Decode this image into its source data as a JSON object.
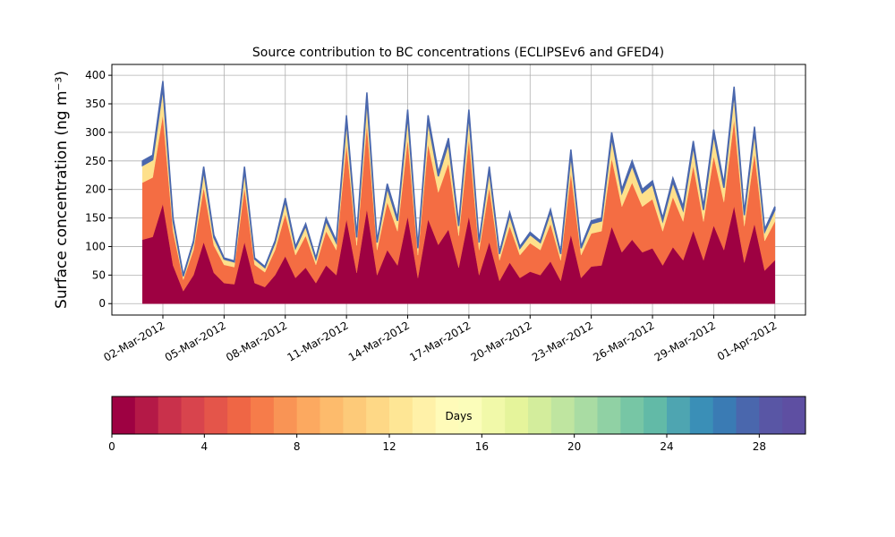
{
  "chart_data": {
    "type": "stacked_area",
    "title": "Source contribution to BC concentrations (ECLIPSEv6 and GFED4)",
    "y_label": "Surface concentration (ng m⁻³)",
    "x": [
      "2012-03-01T00:00",
      "2012-03-01T12:00",
      "2012-03-02T00:00",
      "2012-03-02T12:00",
      "2012-03-03T00:00",
      "2012-03-03T12:00",
      "2012-03-04T00:00",
      "2012-03-04T12:00",
      "2012-03-05T00:00",
      "2012-03-05T12:00",
      "2012-03-06T00:00",
      "2012-03-06T12:00",
      "2012-03-07T00:00",
      "2012-03-07T12:00",
      "2012-03-08T00:00",
      "2012-03-08T12:00",
      "2012-03-09T00:00",
      "2012-03-09T12:00",
      "2012-03-10T00:00",
      "2012-03-10T12:00",
      "2012-03-11T00:00",
      "2012-03-11T12:00",
      "2012-03-12T00:00",
      "2012-03-12T12:00",
      "2012-03-13T00:00",
      "2012-03-13T12:00",
      "2012-03-14T00:00",
      "2012-03-14T12:00",
      "2012-03-15T00:00",
      "2012-03-15T12:00",
      "2012-03-16T00:00",
      "2012-03-16T12:00",
      "2012-03-17T00:00",
      "2012-03-17T12:00",
      "2012-03-18T00:00",
      "2012-03-18T12:00",
      "2012-03-19T00:00",
      "2012-03-19T12:00",
      "2012-03-20T00:00",
      "2012-03-20T12:00",
      "2012-03-21T00:00",
      "2012-03-21T12:00",
      "2012-03-22T00:00",
      "2012-03-22T12:00",
      "2012-03-23T00:00",
      "2012-03-23T12:00",
      "2012-03-24T00:00",
      "2012-03-24T12:00",
      "2012-03-25T00:00",
      "2012-03-25T12:00",
      "2012-03-26T00:00",
      "2012-03-26T12:00",
      "2012-03-27T00:00",
      "2012-03-27T12:00",
      "2012-03-28T00:00",
      "2012-03-28T12:00",
      "2012-03-29T00:00",
      "2012-03-29T12:00",
      "2012-03-30T00:00",
      "2012-03-30T12:00",
      "2012-03-31T00:00",
      "2012-03-31T12:00",
      "2012-04-01T00:00"
    ],
    "series": [
      {
        "color": "#9e0142",
        "values": [
          112,
          117,
          175,
          67,
          22,
          50,
          108,
          54,
          36,
          34,
          108,
          36,
          29,
          50,
          83,
          45,
          63,
          36,
          67,
          50,
          148,
          54,
          166,
          50,
          94,
          67,
          153,
          45,
          148,
          103,
          130,
          63,
          153,
          50,
          108,
          40,
          72,
          45,
          56,
          50,
          74,
          40,
          121,
          45,
          65,
          67,
          135,
          90,
          112,
          90,
          97,
          67,
          99,
          76,
          128,
          76,
          137,
          94,
          171,
          72,
          140,
          58,
          76
        ]
      },
      {
        "color": "#f46d43",
        "values": [
          100,
          104,
          156,
          60,
          20,
          44,
          96,
          48,
          32,
          30,
          96,
          32,
          26,
          44,
          74,
          40,
          56,
          32,
          60,
          44,
          132,
          48,
          148,
          44,
          84,
          60,
          136,
          40,
          132,
          92,
          116,
          56,
          136,
          44,
          96,
          36,
          64,
          40,
          50,
          44,
          66,
          36,
          108,
          40,
          58,
          60,
          120,
          80,
          100,
          80,
          86,
          60,
          88,
          68,
          114,
          68,
          122,
          84,
          152,
          64,
          124,
          52,
          68
        ]
      },
      {
        "color": "#fee08b",
        "values": [
          30,
          31,
          47,
          18,
          6,
          13,
          29,
          14,
          10,
          9,
          29,
          10,
          8,
          13,
          22,
          12,
          17,
          10,
          18,
          13,
          40,
          14,
          44,
          13,
          25,
          18,
          41,
          12,
          40,
          28,
          35,
          17,
          41,
          13,
          29,
          11,
          19,
          12,
          15,
          13,
          20,
          11,
          32,
          12,
          17,
          18,
          36,
          24,
          30,
          24,
          26,
          18,
          26,
          20,
          34,
          20,
          37,
          25,
          46,
          19,
          37,
          16,
          20
        ]
      },
      {
        "color": "#4a67ad",
        "values": [
          8,
          8,
          12,
          5,
          2,
          3,
          7,
          4,
          2,
          2,
          7,
          2,
          2,
          3,
          6,
          3,
          4,
          2,
          5,
          3,
          10,
          4,
          12,
          3,
          7,
          5,
          10,
          3,
          10,
          7,
          9,
          4,
          10,
          3,
          7,
          3,
          5,
          3,
          4,
          3,
          5,
          3,
          9,
          3,
          5,
          5,
          9,
          6,
          8,
          6,
          6,
          5,
          7,
          6,
          9,
          6,
          9,
          7,
          11,
          5,
          9,
          4,
          6
        ]
      }
    ],
    "xlim": [
      "2012-02-28T12:00",
      "2012-04-02T12:00"
    ],
    "xticks": [
      {
        "value": "2012-03-02T00:00",
        "label": "02-Mar-2012"
      },
      {
        "value": "2012-03-05T00:00",
        "label": "05-Mar-2012"
      },
      {
        "value": "2012-03-08T00:00",
        "label": "08-Mar-2012"
      },
      {
        "value": "2012-03-11T00:00",
        "label": "11-Mar-2012"
      },
      {
        "value": "2012-03-14T00:00",
        "label": "14-Mar-2012"
      },
      {
        "value": "2012-03-17T00:00",
        "label": "17-Mar-2012"
      },
      {
        "value": "2012-03-20T00:00",
        "label": "20-Mar-2012"
      },
      {
        "value": "2012-03-23T00:00",
        "label": "23-Mar-2012"
      },
      {
        "value": "2012-03-26T00:00",
        "label": "26-Mar-2012"
      },
      {
        "value": "2012-03-29T00:00",
        "label": "29-Mar-2012"
      },
      {
        "value": "2012-04-01T00:00",
        "label": "01-Apr-2012"
      }
    ],
    "ylim": [
      -20,
      419
    ],
    "yticks": [
      0,
      50,
      100,
      150,
      200,
      250,
      300,
      350,
      400
    ],
    "grid": true,
    "colorbar": {
      "label": "Days",
      "lim": [
        0,
        30
      ],
      "ticks": [
        0,
        4,
        8,
        12,
        16,
        20,
        24,
        28
      ],
      "colors": [
        "#9e0142",
        "#b41947",
        "#c9314b",
        "#d8444d",
        "#e4554a",
        "#ef6645",
        "#f67c4a",
        "#f99455",
        "#fca960",
        "#fdbb6c",
        "#fdca79",
        "#fed886",
        "#fee695",
        "#fff1a8",
        "#fffbb9",
        "#fbfdba",
        "#f1f9a9",
        "#e5f49b",
        "#d3ed9c",
        "#bfe5a0",
        "#a9dca3",
        "#90d1a4",
        "#77c6a5",
        "#62baa7",
        "#4ea5b1",
        "#3a8fb7",
        "#3a7bb4",
        "#4a67ad",
        "#5956a5",
        "#5e4fa2"
      ]
    }
  }
}
